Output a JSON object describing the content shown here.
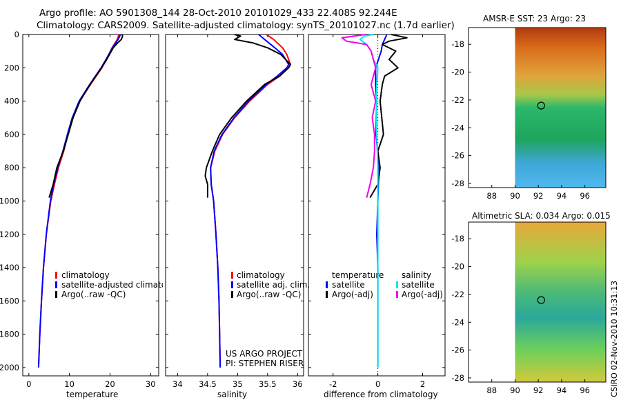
{
  "header": {
    "line1": "Argo profile: AO 5901308_144 28-Oct-2010 20101029_433 22.408S 92.244E",
    "line2": "Climatology: CARS2009. Satellite-adjusted climatology: synTS_20101027.nc (1.7d earlier)"
  },
  "colors": {
    "climatology": "#ff0000",
    "satellite": "#0000ff",
    "argo": "#000000",
    "salinity_satellite": "#00e5ee",
    "salinity_argo": "#ee00ee"
  },
  "panel_temperature": {
    "xlabel": "temperature",
    "legend": [
      "climatology",
      "satellite-adjusted climatology",
      "Argo(..raw -QC)"
    ]
  },
  "panel_salinity": {
    "xlabel": "salinity",
    "legend": [
      "climatology",
      "satellite adj. clim.",
      "Argo(..raw -QC)"
    ],
    "credit1": "US ARGO PROJECT",
    "credit2": "PI: STEPHEN RISER"
  },
  "panel_difference": {
    "xlabel": "difference from climatology",
    "legend_temp_title": "temperature",
    "legend_sal_title": "salinity",
    "legend_temp": [
      "satellite",
      "Argo(-adj)"
    ],
    "legend_sal": [
      "satellite",
      "Argo(-adj)"
    ]
  },
  "map_sst": {
    "title": "AMSR-E SST: 23 Argo: 23"
  },
  "map_sla": {
    "title": "Altimetric SLA: 0.034 Argo: 0.015"
  },
  "footer": {
    "stamp": "CSIRO 02-Nov-2010 10:31:13"
  },
  "chart_data": [
    {
      "type": "line",
      "title": "",
      "xlabel": "temperature",
      "ylabel": "",
      "xlim": [
        -1.5,
        32
      ],
      "ylim": [
        2050,
        0
      ],
      "xticks": [
        0,
        10,
        20,
        30
      ],
      "yticks": [
        0,
        200,
        400,
        600,
        800,
        1000,
        1200,
        1400,
        1600,
        1800,
        2000
      ],
      "series": [
        {
          "name": "climatology",
          "depth": [
            0,
            30,
            80,
            150,
            200,
            300,
            400,
            500,
            600,
            700,
            800,
            900,
            1000,
            1200,
            1400,
            1600,
            1800,
            2000
          ],
          "values": [
            22.2,
            21.8,
            20.5,
            19.1,
            18.0,
            15.2,
            12.5,
            10.8,
            9.6,
            8.6,
            7.3,
            6.3,
            5.4,
            4.3,
            3.6,
            3.1,
            2.7,
            2.4
          ]
        },
        {
          "name": "satellite-adjusted climatology",
          "depth": [
            0,
            30,
            80,
            150,
            200,
            300,
            400,
            500,
            600,
            700,
            800,
            900,
            1000,
            1200,
            1400,
            1600,
            1800,
            2000
          ],
          "values": [
            22.6,
            22.0,
            20.6,
            19.0,
            17.8,
            15.0,
            12.4,
            10.7,
            9.5,
            8.4,
            7.1,
            6.1,
            5.3,
            4.3,
            3.6,
            3.1,
            2.7,
            2.4
          ]
        },
        {
          "name": "Argo(..raw -QC)",
          "depth": [
            0,
            10,
            30,
            50,
            80,
            150,
            200,
            300,
            400,
            500,
            600,
            700,
            800,
            900,
            980
          ],
          "values": [
            23.0,
            23.1,
            22.8,
            21.9,
            20.8,
            19.2,
            17.9,
            15.1,
            12.6,
            10.9,
            9.7,
            8.5,
            6.9,
            6.0,
            5.0
          ]
        }
      ]
    },
    {
      "type": "line",
      "title": "",
      "xlabel": "salinity",
      "ylabel": "",
      "xlim": [
        33.8,
        36.1
      ],
      "ylim": [
        2050,
        0
      ],
      "xticks": [
        34,
        34.5,
        35,
        35.5,
        36
      ],
      "yticks": [
        0,
        200,
        400,
        600,
        800,
        1000,
        1200,
        1400,
        1600,
        1800,
        2000
      ],
      "series": [
        {
          "name": "climatology",
          "depth": [
            0,
            30,
            80,
            120,
            180,
            200,
            250,
            300,
            400,
            500,
            600,
            700,
            800,
            900,
            1000,
            1200,
            1400,
            1600,
            1800,
            2000
          ],
          "values": [
            35.48,
            35.6,
            35.75,
            35.82,
            35.88,
            35.85,
            35.7,
            35.5,
            35.2,
            34.95,
            34.75,
            34.62,
            34.55,
            34.56,
            34.6,
            34.64,
            34.67,
            34.69,
            34.7,
            34.71
          ]
        },
        {
          "name": "satellite adj. clim.",
          "depth": [
            0,
            30,
            80,
            120,
            180,
            200,
            250,
            300,
            400,
            500,
            600,
            700,
            800,
            900,
            1000,
            1200,
            1400,
            1600,
            1800,
            2000
          ],
          "values": [
            35.35,
            35.45,
            35.62,
            35.75,
            35.85,
            35.82,
            35.66,
            35.48,
            35.18,
            34.94,
            34.74,
            34.61,
            34.55,
            34.56,
            34.6,
            34.64,
            34.67,
            34.69,
            34.7,
            34.71
          ]
        },
        {
          "name": "Argo(..raw -QC)",
          "depth": [
            0,
            10,
            30,
            50,
            80,
            120,
            150,
            180,
            200,
            250,
            300,
            400,
            500,
            600,
            700,
            800,
            850,
            900,
            980
          ],
          "values": [
            34.95,
            35.05,
            34.95,
            35.25,
            35.5,
            35.72,
            35.8,
            35.88,
            35.85,
            35.7,
            35.45,
            35.15,
            34.9,
            34.7,
            34.58,
            34.48,
            34.46,
            34.5,
            34.5
          ]
        }
      ]
    },
    {
      "type": "line",
      "title": "",
      "xlabel": "difference from climatology",
      "ylabel": "",
      "xlim": [
        -3.1,
        3.0
      ],
      "ylim": [
        2050,
        0
      ],
      "xticks": [
        -2,
        0,
        2
      ],
      "yticks": [
        0,
        200,
        400,
        600,
        800,
        1000,
        1200,
        1400,
        1600,
        1800,
        2000
      ],
      "series": [
        {
          "name": "temperature satellite",
          "depth": [
            0,
            30,
            60,
            100,
            200,
            300,
            400,
            600,
            800,
            1000,
            1200,
            1400,
            1600,
            1800,
            2000
          ],
          "values": [
            0.4,
            0.3,
            0.2,
            0.15,
            -0.1,
            -0.1,
            -0.05,
            -0.08,
            0.05,
            0.0,
            -0.05,
            0.0,
            0.0,
            0.0,
            0.0
          ]
        },
        {
          "name": "temperature Argo(-adj)",
          "depth": [
            0,
            20,
            40,
            60,
            100,
            150,
            200,
            250,
            300,
            400,
            600,
            700,
            800,
            900,
            980
          ],
          "values": [
            0.6,
            1.3,
            0.5,
            0.2,
            0.8,
            0.5,
            0.9,
            0.3,
            0.2,
            0.1,
            0.25,
            0.0,
            0.1,
            0.0,
            -0.35
          ]
        },
        {
          "name": "salinity satellite",
          "depth": [
            0,
            10,
            30,
            60,
            100,
            150,
            200,
            300,
            400,
            600,
            800,
            1000,
            1200,
            1400,
            1600,
            1800,
            2000
          ],
          "values": [
            -0.2,
            -0.6,
            -0.8,
            -0.5,
            -0.3,
            -0.2,
            0.0,
            -0.05,
            -0.05,
            -0.05,
            0.0,
            0.0,
            0.0,
            0.0,
            0.0,
            0.0,
            0.0
          ]
        },
        {
          "name": "salinity Argo(-adj)",
          "depth": [
            0,
            20,
            40,
            60,
            100,
            150,
            200,
            300,
            400,
            500,
            600,
            700,
            800,
            900,
            980
          ],
          "values": [
            -0.55,
            -1.6,
            -1.4,
            -0.5,
            -0.3,
            -0.2,
            -0.1,
            -0.3,
            -0.1,
            -0.25,
            -0.15,
            -0.15,
            -0.2,
            -0.35,
            -0.5
          ]
        }
      ]
    }
  ],
  "maps": [
    {
      "name": "AMSR-E SST",
      "xticks": [
        88,
        90,
        92,
        94,
        96
      ],
      "yticks": [
        -18,
        -20,
        -22,
        -24,
        -26,
        -28
      ],
      "marker": {
        "lon": 92.244,
        "lat": -22.408
      },
      "lon_range": [
        86,
        97.8
      ],
      "lat_range": [
        -28.3,
        -16.8
      ],
      "data_lon_start": 90
    },
    {
      "name": "Altimetric SLA",
      "xticks": [
        88,
        90,
        92,
        94,
        96
      ],
      "yticks": [
        -18,
        -20,
        -22,
        -24,
        -26,
        -28
      ],
      "marker": {
        "lon": 92.244,
        "lat": -22.408
      },
      "lon_range": [
        86,
        97.8
      ],
      "lat_range": [
        -28.3,
        -16.8
      ],
      "data_lon_start": 90
    }
  ]
}
